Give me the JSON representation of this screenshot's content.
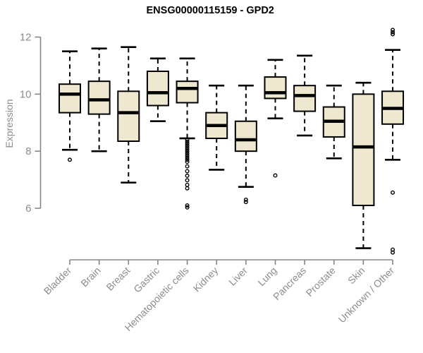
{
  "chart_data": {
    "type": "boxplot",
    "title": "ENSG00000115159 - GPD2",
    "ylabel": "Expression",
    "xlabel": "",
    "ylim": [
      6,
      12
    ],
    "yticks": [
      6,
      8,
      10,
      12
    ],
    "grid": false,
    "legend": "none",
    "categories": [
      "Bladder",
      "Brain",
      "Breast",
      "Gastric",
      "Hematopoietic cells",
      "Kidney",
      "Liver",
      "Lung",
      "Pancreas",
      "Prostate",
      "Skin",
      "Unknown / Other"
    ],
    "series": [
      {
        "category": "Bladder",
        "whisker_low": 8.05,
        "q1": 9.35,
        "median": 10.0,
        "q3": 10.35,
        "whisker_high": 11.5,
        "outliers": [
          7.7
        ]
      },
      {
        "category": "Brain",
        "whisker_low": 8.0,
        "q1": 9.3,
        "median": 9.8,
        "q3": 10.45,
        "whisker_high": 11.6,
        "outliers": []
      },
      {
        "category": "Breast",
        "whisker_low": 6.9,
        "q1": 8.35,
        "median": 9.35,
        "q3": 10.1,
        "whisker_high": 11.65,
        "outliers": []
      },
      {
        "category": "Gastric",
        "whisker_low": 9.05,
        "q1": 9.6,
        "median": 10.05,
        "q3": 10.8,
        "whisker_high": 11.25,
        "outliers": []
      },
      {
        "category": "Hematopoietic cells",
        "whisker_low": 8.45,
        "q1": 9.7,
        "median": 10.2,
        "q3": 10.45,
        "whisker_high": 11.25,
        "outliers": [
          8.4,
          8.33,
          8.26,
          8.19,
          8.12,
          8.05,
          7.98,
          7.91,
          7.84,
          7.77,
          7.7,
          7.63,
          7.47,
          7.3,
          7.14,
          6.98,
          6.82,
          6.7,
          6.1,
          6.03
        ]
      },
      {
        "category": "Kidney",
        "whisker_low": 7.35,
        "q1": 8.45,
        "median": 8.9,
        "q3": 9.35,
        "whisker_high": 10.3,
        "outliers": []
      },
      {
        "category": "Liver",
        "whisker_low": 6.75,
        "q1": 8.0,
        "median": 8.4,
        "q3": 9.05,
        "whisker_high": 10.3,
        "outliers": [
          6.3,
          6.22
        ]
      },
      {
        "category": "Lung",
        "whisker_low": 9.15,
        "q1": 9.85,
        "median": 10.05,
        "q3": 10.6,
        "whisker_high": 11.2,
        "outliers": [
          7.15
        ]
      },
      {
        "category": "Pancreas",
        "whisker_low": 8.55,
        "q1": 9.4,
        "median": 9.95,
        "q3": 10.3,
        "whisker_high": 11.35,
        "outliers": []
      },
      {
        "category": "Prostate",
        "whisker_low": 7.75,
        "q1": 8.5,
        "median": 9.05,
        "q3": 9.55,
        "whisker_high": 10.3,
        "outliers": []
      },
      {
        "category": "Skin",
        "whisker_low": 4.6,
        "q1": 6.1,
        "median": 8.15,
        "q3": 10.0,
        "whisker_high": 10.4,
        "outliers": []
      },
      {
        "category": "Unknown / Other",
        "whisker_low": 7.7,
        "q1": 8.95,
        "median": 9.5,
        "q3": 10.1,
        "whisker_high": 11.55,
        "outliers": [
          12.25,
          12.17,
          12.1,
          6.55,
          4.55,
          4.45
        ]
      }
    ],
    "colors": {
      "box_fill": "#EFE8D0",
      "box_border": "#000000",
      "median": "#000000",
      "whisker": "#000000",
      "axis": "#858585",
      "tick_label": "#8c8c8c",
      "title": "#000000",
      "background": "#ffffff"
    }
  }
}
